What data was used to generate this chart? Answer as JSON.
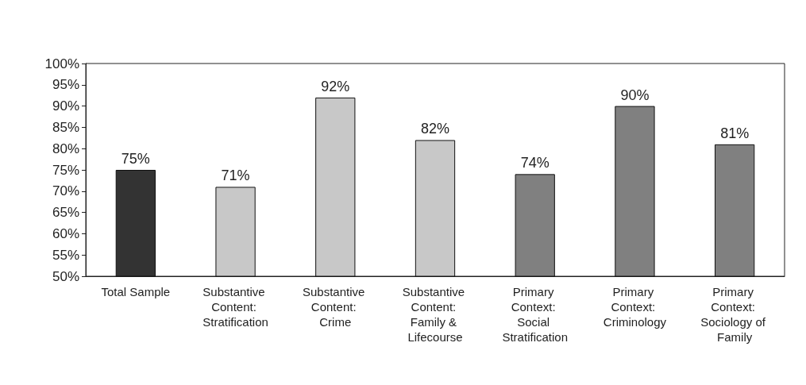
{
  "chart_data": {
    "type": "bar",
    "categories": [
      "Total Sample",
      "Substantive Content: Stratification",
      "Substantive Content: Crime",
      "Substantive Content: Family & Lifecourse",
      "Primary Context: Social Stratification",
      "Primary Context: Criminology",
      "Primary Context: Sociology of Family"
    ],
    "values": [
      75,
      71,
      92,
      82,
      74,
      90,
      81
    ],
    "colors": [
      "#333333",
      "#c8c8c8",
      "#c8c8c8",
      "#c8c8c8",
      "#808080",
      "#808080",
      "#808080"
    ],
    "value_labels": [
      "75%",
      "71%",
      "92%",
      "82%",
      "74%",
      "90%",
      "81%"
    ],
    "ylim": [
      50,
      100
    ],
    "yticks": [
      {
        "value": 50,
        "label": "50%"
      },
      {
        "value": 55,
        "label": "55%"
      },
      {
        "value": 60,
        "label": "60%"
      },
      {
        "value": 65,
        "label": "65%"
      },
      {
        "value": 70,
        "label": "70%"
      },
      {
        "value": 75,
        "label": "75%"
      },
      {
        "value": 80,
        "label": "80%"
      },
      {
        "value": 85,
        "label": "85%"
      },
      {
        "value": 90,
        "label": "90%"
      },
      {
        "value": 95,
        "label": "95%"
      },
      {
        "value": 100,
        "label": "100%"
      }
    ],
    "grid": false
  }
}
